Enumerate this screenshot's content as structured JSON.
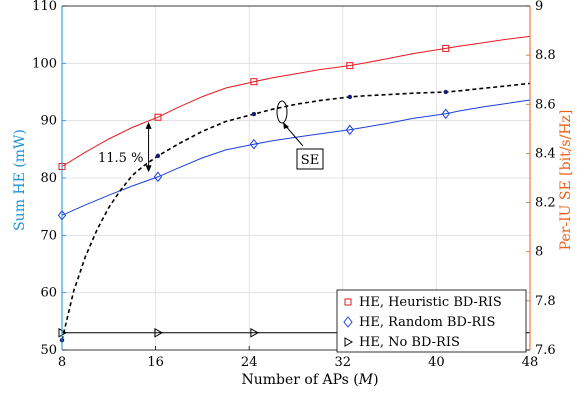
{
  "chart_data": {
    "type": "line",
    "xlabel": "Number of APs (",
    "xlabel_var": "M",
    "xlabel_close": ")",
    "ylabel_left": "Sum HE (mW)",
    "ylabel_right": "Per-IU SE [bit/s/Hz]",
    "x_ticks": [
      "8",
      "16",
      "24",
      "32",
      "40",
      "48"
    ],
    "y_left_ticks": [
      "50",
      "60",
      "70",
      "80",
      "90",
      "100",
      "110"
    ],
    "y_right_ticks": [
      "7.6",
      "7.8",
      "8",
      "8.2",
      "8.4",
      "8.6",
      "8.8",
      "9"
    ],
    "xlim": [
      8,
      48
    ],
    "ylim_left": [
      50,
      110
    ],
    "ylim_right": [
      7.6,
      9.0
    ],
    "grid": true,
    "legend_position": "lower-right",
    "colors": {
      "left_axis": "#1a8fd6",
      "right_axis": "#e8601c",
      "heuristic": "#e8191f",
      "random": "#1f3fe0",
      "none": "#000000",
      "se": "#000000"
    },
    "series": [
      {
        "name": "HE, Heuristic BD-RIS",
        "axis": "left",
        "marker": "square",
        "x": [
          8,
          16.2,
          24.4,
          32.6,
          40.8
        ],
        "y": [
          82,
          90.6,
          96.8,
          99.6,
          102.6
        ],
        "curve_x": [
          8,
          10,
          12,
          14,
          16.2,
          18,
          20,
          22,
          24.4,
          26,
          28,
          30,
          32.6,
          34,
          36,
          38,
          40.8,
          42,
          44,
          46,
          48
        ],
        "curve_y": [
          82,
          84.5,
          86.8,
          88.8,
          90.6,
          92.4,
          94.2,
          95.7,
          96.8,
          97.5,
          98.2,
          98.9,
          99.6,
          100.1,
          100.9,
          101.7,
          102.6,
          103.0,
          103.6,
          104.2,
          104.7
        ]
      },
      {
        "name": "HE, Random BD-RIS",
        "axis": "left",
        "marker": "diamond",
        "x": [
          8,
          16.2,
          24.4,
          32.6,
          40.8
        ],
        "y": [
          73.5,
          80.2,
          85.9,
          88.4,
          91.2
        ],
        "curve_x": [
          8,
          10,
          12,
          14,
          16.2,
          18,
          20,
          22,
          24.4,
          26,
          28,
          30,
          32.6,
          34,
          36,
          38,
          40.8,
          42,
          44,
          46,
          48
        ],
        "curve_y": [
          73.5,
          75.3,
          77.0,
          78.6,
          80.2,
          81.8,
          83.5,
          84.9,
          85.9,
          86.5,
          87.1,
          87.7,
          88.4,
          88.9,
          89.6,
          90.4,
          91.2,
          91.7,
          92.4,
          93.0,
          93.6
        ]
      },
      {
        "name": "HE, No BD-RIS",
        "axis": "left",
        "marker": "triangle-right",
        "x": [
          8,
          16.2,
          24.4,
          32.6,
          40.8
        ],
        "y": [
          53,
          53,
          53,
          53,
          53
        ],
        "curve_x": [
          8,
          48
        ],
        "curve_y": [
          53,
          53
        ]
      },
      {
        "name": "",
        "axis": "right",
        "marker": "dot",
        "dashed": true,
        "x": [
          8,
          16.2,
          24.4,
          32.6,
          40.8
        ],
        "y": [
          7.64,
          8.39,
          8.56,
          8.63,
          8.65
        ],
        "curve_x": [
          8,
          9,
          10,
          11,
          12,
          13,
          14,
          15,
          16.2,
          18,
          20,
          22,
          24.4,
          26,
          28,
          30,
          32.6,
          34,
          36,
          38,
          40.8,
          42,
          44,
          46,
          48
        ],
        "curve_y": [
          7.64,
          7.84,
          7.98,
          8.09,
          8.18,
          8.25,
          8.31,
          8.35,
          8.39,
          8.44,
          8.49,
          8.53,
          8.56,
          8.58,
          8.6,
          8.615,
          8.63,
          8.635,
          8.64,
          8.645,
          8.65,
          8.655,
          8.665,
          8.675,
          8.685
        ]
      }
    ],
    "annotations": {
      "gap_label": "11.5 %",
      "se_label": "SE"
    }
  }
}
